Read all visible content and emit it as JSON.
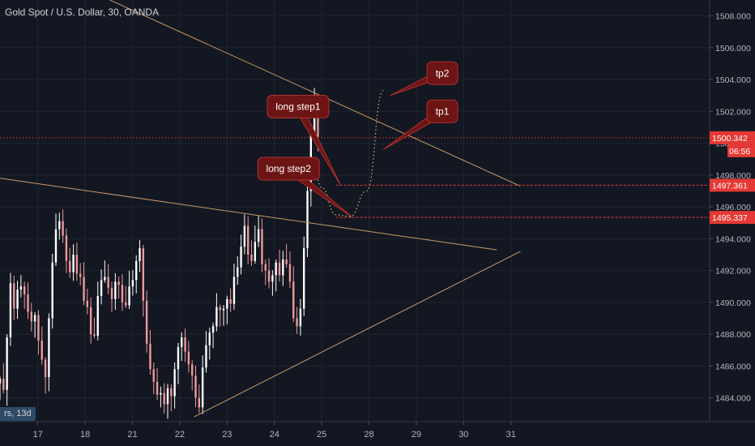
{
  "header": {
    "title": "Gold Spot / U.S. Dollar, 30, OANDA"
  },
  "period_badge": "rs, 13d",
  "colors": {
    "background": "#131722",
    "grid": "#1f2430",
    "candle_up": "#ffffff",
    "candle_down": "#ef9a9a",
    "trendline": "#c89a6a",
    "price_line": "#e53935",
    "callout_fill": "#6d1515",
    "callout_border": "#b03030",
    "path_dots": "#d9b46a",
    "axis_text": "#b2b5be"
  },
  "chart_data": {
    "type": "candlestick",
    "title": "Gold Spot / U.S. Dollar, 30, OANDA",
    "y_axis": {
      "side": "right",
      "ylim": [
        1482.5,
        1509
      ],
      "ticks": [
        "1484.000",
        "1486.000",
        "1488.000",
        "1490.000",
        "1492.000",
        "1494.000",
        "1496.000",
        "1498.000",
        "1500.000",
        "1502.000",
        "1504.000",
        "1506.000",
        "1508.000"
      ]
    },
    "x_axis": {
      "xlim": [
        16.2,
        31.2
      ],
      "ticks": [
        {
          "label": "17",
          "x": 17
        },
        {
          "label": "18",
          "x": 18
        },
        {
          "label": "21",
          "x": 19
        },
        {
          "label": "22",
          "x": 20
        },
        {
          "label": "23",
          "x": 21
        },
        {
          "label": "24",
          "x": 22
        },
        {
          "label": "25",
          "x": 23
        },
        {
          "label": "28",
          "x": 24
        },
        {
          "label": "29",
          "x": 25
        },
        {
          "label": "30",
          "x": 26
        },
        {
          "label": "31",
          "x": 27
        }
      ]
    },
    "grid": true,
    "closes": [
      1485.2,
      1484.5,
      1487.8,
      1491.2,
      1489.6,
      1490.8,
      1491.0,
      1490.5,
      1489.4,
      1488.8,
      1489.2,
      1487.6,
      1486.4,
      1485.3,
      1489.0,
      1492.5,
      1494.6,
      1495.1,
      1494.2,
      1492.6,
      1491.9,
      1493.0,
      1491.8,
      1491.6,
      1490.1,
      1489.7,
      1488.0,
      1487.9,
      1490.4,
      1491.4,
      1491.6,
      1490.9,
      1490.2,
      1491.3,
      1491.1,
      1490.0,
      1489.8,
      1491.0,
      1491.4,
      1492.6,
      1493.4,
      1490.1,
      1487.4,
      1485.8,
      1485.0,
      1484.2,
      1484.3,
      1483.6,
      1484.6,
      1484.1,
      1485.8,
      1487.2,
      1487.8,
      1486.9,
      1486.1,
      1485.4,
      1484.0,
      1483.4,
      1485.9,
      1487.3,
      1488.1,
      1488.5,
      1489.7,
      1489.5,
      1489.6,
      1490.2,
      1489.9,
      1491.6,
      1492.2,
      1493.5,
      1494.8,
      1493.0,
      1492.6,
      1493.8,
      1494.6,
      1492.4,
      1492.0,
      1491.3,
      1491.7,
      1492.5,
      1491.7,
      1492.7,
      1492.4,
      1491.3,
      1489.0,
      1488.5,
      1489.6,
      1493.4,
      1497.0,
      1500.5,
      1502.6,
      1500.4
    ],
    "price_lines": [
      {
        "label": "1500.342",
        "value": 1500.342,
        "style": "dotted"
      },
      {
        "label": "1497.361",
        "value": 1497.361,
        "style": "dashed"
      },
      {
        "label": "1495.337",
        "value": 1495.337,
        "style": "dashed"
      }
    ],
    "countdown_label": "06:56",
    "trendlines": [
      {
        "from": [
          18.3,
          1509.3
        ],
        "to": [
          27.2,
          1497.3
        ]
      },
      {
        "from": [
          16.2,
          1497.8
        ],
        "to": [
          26.7,
          1493.3
        ]
      },
      {
        "from": [
          20.3,
          1482.8
        ],
        "to": [
          27.2,
          1493.2
        ]
      }
    ],
    "projected_path": [
      [
        22.8,
        1499.0
      ],
      [
        23.0,
        1497.2
      ],
      [
        23.3,
        1495.5
      ],
      [
        23.6,
        1495.4
      ],
      [
        23.95,
        1497.0
      ],
      [
        24.3,
        1503.3
      ]
    ],
    "annotations": [
      {
        "text": "long step1",
        "box": [
          22.5,
          1502.3
        ],
        "tip": [
          23.4,
          1497.36
        ]
      },
      {
        "text": "long step2",
        "box": [
          22.3,
          1498.4
        ],
        "tip": [
          23.65,
          1495.34
        ]
      },
      {
        "text": "tp1",
        "box": [
          25.55,
          1502.0
        ],
        "tip": [
          24.3,
          1499.6
        ]
      },
      {
        "text": "tp2",
        "box": [
          25.55,
          1504.4
        ],
        "tip": [
          24.45,
          1503.0
        ]
      }
    ]
  }
}
